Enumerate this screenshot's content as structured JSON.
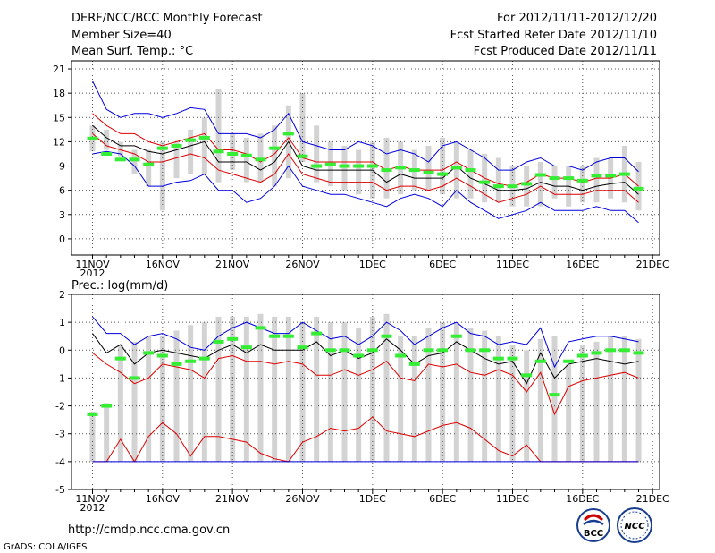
{
  "header": {
    "title": "DERF/NCC/BCC Monthly Forecast",
    "member_size": "Member Size=40",
    "variable": "Mean Surf. Temp.: °C",
    "period": "For 2012/11/11-2012/12/20",
    "started": "Fcst Started Refer Date 2012/11/10",
    "produced": "Fcst Produced Date 2012/11/11"
  },
  "footer": {
    "url": "http://cmdp.ncc.cma.gov.cn",
    "credit": "GrADS: COLA/IGES",
    "logo_left_text": "BCC",
    "logo_right_text": "NCC"
  },
  "x_axis": {
    "labels": [
      "11NOV",
      "16NOV",
      "21NOV",
      "26NOV",
      "1DEC",
      "6DEC",
      "11DEC",
      "16DEC",
      "21DEC"
    ],
    "label_days": [
      0,
      5,
      10,
      15,
      20,
      25,
      30,
      35,
      40
    ],
    "year_label": "2012",
    "xlim": [
      -1.5,
      40.5
    ]
  },
  "colors": {
    "box": "#d3d3d3",
    "member_max": "#0000dd",
    "member_pct": "#dd0000",
    "mean": "#000000",
    "obs": "#33ee33",
    "grid": "#555555"
  },
  "chart_data": [
    {
      "type": "line",
      "name": "temperature",
      "ylabel": "Mean Surf. Temp.: °C",
      "ylim": [
        -2,
        22
      ],
      "yticks": [
        0,
        3,
        6,
        9,
        12,
        15,
        18,
        21
      ],
      "x": [
        0,
        1,
        2,
        3,
        4,
        5,
        6,
        7,
        8,
        9,
        10,
        11,
        12,
        13,
        14,
        15,
        16,
        17,
        18,
        19,
        20,
        21,
        22,
        23,
        24,
        25,
        26,
        27,
        28,
        29,
        30,
        31,
        32,
        33,
        34,
        35,
        36,
        37,
        38,
        39
      ],
      "box_low": [
        10.8,
        11.0,
        10.2,
        8.0,
        6.5,
        3.5,
        7.5,
        8.0,
        8.0,
        7.0,
        8.5,
        7.0,
        7.0,
        6.5,
        7.5,
        9.5,
        7.0,
        6.5,
        6.0,
        5.5,
        5.0,
        5.0,
        5.5,
        6.0,
        6.0,
        5.5,
        5.0,
        5.0,
        4.5,
        4.5,
        4.0,
        4.0,
        4.0,
        5.0,
        4.0,
        4.5,
        4.5,
        5.0,
        4.5,
        3.5
      ],
      "box_high": [
        14.0,
        13.5,
        12.0,
        11.0,
        11.0,
        12.0,
        12.0,
        13.5,
        15.0,
        18.5,
        13.0,
        12.5,
        13.0,
        14.0,
        16.5,
        18.0,
        14.0,
        12.0,
        11.5,
        11.0,
        12.0,
        12.5,
        12.0,
        11.0,
        11.5,
        12.5,
        12.0,
        11.0,
        10.5,
        10.0,
        9.0,
        9.0,
        9.5,
        9.0,
        9.0,
        9.0,
        10.0,
        10.0,
        11.5,
        9.5
      ],
      "obs": [
        12.4,
        10.5,
        9.8,
        9.8,
        9.2,
        11.2,
        11.5,
        12.2,
        12.5,
        10.8,
        10.5,
        10.3,
        9.8,
        11.2,
        13.0,
        10.2,
        9.0,
        9.2,
        9.0,
        9.0,
        9.0,
        8.5,
        8.8,
        8.5,
        8.2,
        8.0,
        8.8,
        8.5,
        7.0,
        6.5,
        6.5,
        6.8,
        7.9,
        7.5,
        7.5,
        7.2,
        7.8,
        7.8,
        8.0,
        6.2
      ],
      "series": [
        {
          "name": "member_max",
          "color": "#0000dd",
          "values": [
            19.5,
            16.0,
            15.0,
            15.5,
            15.5,
            15.0,
            15.5,
            16.2,
            16.0,
            13.0,
            13.0,
            13.0,
            12.5,
            13.5,
            15.5,
            12.0,
            11.5,
            11.0,
            11.0,
            12.0,
            11.5,
            10.5,
            11.0,
            10.5,
            9.5,
            11.5,
            12.0,
            11.0,
            10.0,
            8.5,
            8.5,
            9.5,
            10.0,
            9.0,
            9.0,
            8.5,
            9.5,
            10.0,
            10.0,
            8.3
          ]
        },
        {
          "name": "pct_high",
          "color": "#dd0000",
          "values": [
            15.5,
            14.0,
            13.0,
            13.0,
            12.0,
            11.5,
            12.0,
            12.5,
            13.0,
            11.0,
            11.0,
            10.5,
            9.5,
            10.5,
            12.5,
            10.0,
            9.5,
            9.5,
            9.5,
            9.5,
            9.5,
            8.5,
            9.0,
            8.5,
            8.5,
            8.5,
            9.5,
            8.5,
            7.5,
            6.8,
            6.5,
            7.0,
            8.0,
            7.5,
            7.5,
            7.0,
            7.5,
            7.5,
            8.0,
            6.5
          ]
        },
        {
          "name": "mean",
          "color": "#000000",
          "values": [
            14.0,
            12.5,
            11.5,
            11.5,
            10.8,
            10.5,
            11.0,
            11.5,
            12.0,
            9.5,
            9.5,
            9.5,
            8.5,
            9.5,
            12.0,
            9.0,
            8.5,
            8.5,
            8.5,
            8.5,
            8.5,
            7.0,
            8.0,
            7.5,
            7.5,
            7.5,
            9.0,
            7.5,
            6.8,
            6.0,
            6.0,
            6.2,
            7.0,
            6.5,
            6.5,
            6.0,
            6.5,
            6.8,
            7.0,
            5.5
          ]
        },
        {
          "name": "pct_low",
          "color": "#dd0000",
          "values": [
            13.0,
            11.5,
            11.0,
            10.5,
            9.5,
            9.5,
            10.0,
            10.5,
            10.0,
            8.5,
            8.0,
            7.5,
            7.0,
            8.0,
            10.5,
            8.0,
            7.5,
            7.0,
            7.0,
            7.0,
            7.0,
            6.0,
            6.5,
            6.5,
            6.0,
            6.5,
            7.5,
            6.5,
            5.5,
            4.5,
            5.0,
            5.5,
            6.5,
            5.5,
            5.5,
            5.5,
            6.0,
            6.0,
            6.0,
            4.5
          ]
        },
        {
          "name": "member_min",
          "color": "#0000dd",
          "values": [
            10.5,
            10.8,
            10.5,
            9.0,
            6.5,
            6.5,
            7.0,
            7.2,
            8.0,
            6.0,
            6.0,
            4.5,
            5.0,
            6.5,
            9.0,
            6.5,
            6.0,
            5.5,
            5.5,
            5.0,
            4.5,
            4.0,
            5.0,
            5.5,
            5.0,
            4.0,
            6.0,
            4.5,
            3.5,
            2.5,
            3.0,
            3.5,
            4.5,
            3.5,
            3.5,
            3.5,
            4.0,
            3.5,
            3.5,
            2.0
          ]
        }
      ]
    },
    {
      "type": "line",
      "name": "precipitation",
      "ylabel": "Prec.: log(mm/d)",
      "ylim": [
        -5,
        2
      ],
      "yticks": [
        -5,
        -4,
        -3,
        -2,
        -1,
        0,
        1,
        2
      ],
      "x": [
        0,
        1,
        2,
        3,
        4,
        5,
        6,
        7,
        8,
        9,
        10,
        11,
        12,
        13,
        14,
        15,
        16,
        17,
        18,
        19,
        20,
        21,
        22,
        23,
        24,
        25,
        26,
        27,
        28,
        29,
        30,
        31,
        32,
        33,
        34,
        35,
        36,
        37,
        38,
        39
      ],
      "box_low": [
        -4.0,
        -4.0,
        -4.0,
        -4.0,
        -4.0,
        -4.0,
        -4.0,
        -4.0,
        -4.0,
        -4.0,
        -4.0,
        -4.0,
        -4.0,
        -4.0,
        -4.0,
        -4.0,
        -4.0,
        -4.0,
        -4.0,
        -4.0,
        -4.0,
        -4.0,
        -4.0,
        -4.0,
        -4.0,
        -4.0,
        -4.0,
        -4.0,
        -4.0,
        -4.0,
        -4.0,
        -4.0,
        -4.0,
        -4.0,
        -4.0,
        -4.0,
        -4.0,
        -4.0,
        -4.0,
        -4.0
      ],
      "box_high": [
        -2.2,
        -1.9,
        0.2,
        0.3,
        0.5,
        0.5,
        0.7,
        0.9,
        1.0,
        1.2,
        1.2,
        1.2,
        1.3,
        1.2,
        1.2,
        1.0,
        1.2,
        1.0,
        1.0,
        0.8,
        1.2,
        1.3,
        0.5,
        0.5,
        0.8,
        1.0,
        1.0,
        0.8,
        0.7,
        0.5,
        0.2,
        0.0,
        0.4,
        0.5,
        -0.5,
        0.2,
        0.3,
        0.5,
        0.5,
        0.4
      ],
      "obs": [
        -2.3,
        -2.0,
        -0.3,
        -1.0,
        -0.1,
        -0.2,
        -0.5,
        -0.4,
        -0.3,
        0.3,
        0.4,
        0.1,
        0.8,
        0.5,
        0.5,
        0.1,
        0.6,
        0.0,
        0.0,
        -0.2,
        0.0,
        0.5,
        -0.2,
        -0.5,
        0.0,
        0.0,
        0.5,
        0.0,
        0.0,
        -0.3,
        -0.3,
        -0.9,
        -0.4,
        -1.6,
        -0.4,
        -0.2,
        -0.1,
        0.0,
        0.0,
        -0.1
      ],
      "series": [
        {
          "name": "member_max",
          "color": "#0000dd",
          "values": [
            1.2,
            0.6,
            0.6,
            0.2,
            0.5,
            0.6,
            0.4,
            0.1,
            0.0,
            0.5,
            0.8,
            1.0,
            0.8,
            0.6,
            0.6,
            1.0,
            0.7,
            0.4,
            0.5,
            0.2,
            0.5,
            1.0,
            0.7,
            0.2,
            0.5,
            0.8,
            1.0,
            0.6,
            0.5,
            0.2,
            0.3,
            0.2,
            0.8,
            -0.6,
            0.3,
            0.4,
            0.5,
            0.5,
            0.4,
            0.3
          ]
        },
        {
          "name": "pct_high",
          "color": "#dd0000",
          "values": [
            -0.1,
            -0.5,
            -0.8,
            -1.2,
            -1.0,
            -0.5,
            -0.6,
            -0.7,
            -1.0,
            -0.3,
            -0.2,
            -0.4,
            -0.4,
            -0.5,
            -0.4,
            -0.5,
            -0.9,
            -0.9,
            -0.7,
            -0.9,
            -0.7,
            -0.4,
            -1.0,
            -1.1,
            -0.5,
            -0.6,
            -0.5,
            -0.8,
            -0.9,
            -0.7,
            -0.9,
            -1.5,
            -0.8,
            -2.3,
            -1.3,
            -1.1,
            -1.0,
            -0.9,
            -0.8,
            -1.0
          ]
        },
        {
          "name": "mean",
          "color": "#000000",
          "values": [
            0.6,
            -0.1,
            0.2,
            -0.5,
            -0.1,
            0.0,
            -0.1,
            -0.2,
            -0.3,
            0.0,
            0.2,
            -0.1,
            0.2,
            0.0,
            0.0,
            0.0,
            0.3,
            -0.2,
            0.0,
            -0.3,
            -0.1,
            0.4,
            0.0,
            -0.5,
            -0.2,
            -0.1,
            0.3,
            0.0,
            -0.3,
            -0.5,
            -0.4,
            -1.2,
            -0.1,
            -1.0,
            -0.5,
            -0.4,
            -0.3,
            -0.4,
            -0.5,
            -0.4
          ]
        },
        {
          "name": "pct_low",
          "color": "#dd0000",
          "values": [
            -4.0,
            -4.0,
            -3.2,
            -4.0,
            -3.1,
            -2.6,
            -3.0,
            -3.8,
            -3.1,
            -3.1,
            -3.2,
            -3.3,
            -3.7,
            -3.9,
            -4.0,
            -3.3,
            -3.1,
            -2.8,
            -2.9,
            -2.8,
            -2.4,
            -2.9,
            -3.0,
            -3.1,
            -2.9,
            -2.7,
            -2.6,
            -2.8,
            -3.2,
            -3.6,
            -3.8,
            -3.4,
            -4.0,
            -4.0,
            -4.0,
            -4.0,
            -4.0,
            -4.0,
            -4.0,
            -4.0
          ]
        },
        {
          "name": "member_min",
          "color": "#0000dd",
          "values": [
            -4.0,
            -4.0,
            -4.0,
            -4.0,
            -4.0,
            -4.0,
            -4.0,
            -4.0,
            -4.0,
            -4.0,
            -4.0,
            -4.0,
            -4.0,
            -4.0,
            -4.0,
            -4.0,
            -4.0,
            -4.0,
            -4.0,
            -4.0,
            -4.0,
            -4.0,
            -4.0,
            -4.0,
            -4.0,
            -4.0,
            -4.0,
            -4.0,
            -4.0,
            -4.0,
            -4.0,
            -4.0,
            -4.0,
            -4.0,
            -4.0,
            -4.0,
            -4.0,
            -4.0,
            -4.0,
            -4.0
          ]
        }
      ]
    }
  ]
}
